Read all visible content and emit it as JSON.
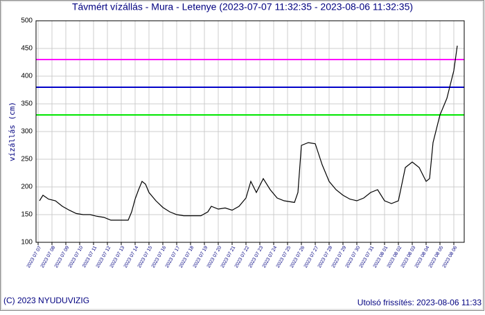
{
  "chart_data": {
    "type": "line",
    "title": "Távmért vízállás - Mura - Letenye (2023-07-07 11:32:35 - 2023-08-06 11:32:35)",
    "ylabel": "vízállás (cm)",
    "footer_left": "(C) 2023 NYUDUVIZIG",
    "footer_right": "Utolsó frissítés: 2023-08-06 11:33",
    "xlim": [
      -0.15,
      30.75
    ],
    "xticks": [
      {
        "value": 0,
        "label": "2023 07 07"
      },
      {
        "value": 1,
        "label": "2023 07 08"
      },
      {
        "value": 2,
        "label": "2023 07 09"
      },
      {
        "value": 3,
        "label": "2023 07 10"
      },
      {
        "value": 4,
        "label": "2023 07 11"
      },
      {
        "value": 5,
        "label": "2023 07 12"
      },
      {
        "value": 6,
        "label": "2023 07 13"
      },
      {
        "value": 7,
        "label": "2023 07 14"
      },
      {
        "value": 8,
        "label": "2023 07 15"
      },
      {
        "value": 9,
        "label": "2023 07 16"
      },
      {
        "value": 10,
        "label": "2023 07 17"
      },
      {
        "value": 11,
        "label": "2023 07 18"
      },
      {
        "value": 12,
        "label": "2023 07 19"
      },
      {
        "value": 13,
        "label": "2023 07 20"
      },
      {
        "value": 14,
        "label": "2023 07 21"
      },
      {
        "value": 15,
        "label": "2023 07 22"
      },
      {
        "value": 16,
        "label": "2023 07 23"
      },
      {
        "value": 17,
        "label": "2023 07 24"
      },
      {
        "value": 18,
        "label": "2023 07 25"
      },
      {
        "value": 19,
        "label": "2023 07 26"
      },
      {
        "value": 20,
        "label": "2023 07 27"
      },
      {
        "value": 21,
        "label": "2023 07 28"
      },
      {
        "value": 22,
        "label": "2023 07 29"
      },
      {
        "value": 23,
        "label": "2023 07 30"
      },
      {
        "value": 24,
        "label": "2023 07 31"
      },
      {
        "value": 25,
        "label": "2023 08 01"
      },
      {
        "value": 26,
        "label": "2023 08 02"
      },
      {
        "value": 27,
        "label": "2023 08 03"
      },
      {
        "value": 28,
        "label": "2023 08 04"
      },
      {
        "value": 29,
        "label": "2023 08 05"
      },
      {
        "value": 30,
        "label": "2023 08 06"
      }
    ],
    "ylim": [
      100,
      500
    ],
    "yticks": [
      100,
      150,
      200,
      250,
      300,
      350,
      400,
      450,
      500
    ],
    "grid": true,
    "hlines": [
      {
        "value": 430,
        "color": "#ff00ff"
      },
      {
        "value": 380,
        "color": "#0000c8"
      },
      {
        "value": 330,
        "color": "#00e600"
      }
    ],
    "series": [
      {
        "color": "#000000",
        "x": [
          0.1,
          0.35,
          0.75,
          1.25,
          1.75,
          2.25,
          2.75,
          3.25,
          3.75,
          4.25,
          4.75,
          5.25,
          6,
          6.5,
          6.75,
          7,
          7.25,
          7.5,
          7.75,
          8,
          8.5,
          9,
          9.5,
          10,
          10.5,
          11.25,
          11.75,
          12.25,
          12.5,
          13,
          13.5,
          14,
          14.5,
          15,
          15.35,
          15.75,
          16.25,
          16.75,
          17.25,
          17.75,
          18.5,
          18.75,
          19,
          19.5,
          20,
          20.5,
          21,
          21.5,
          22,
          22.5,
          23,
          23.5,
          24,
          24.5,
          25,
          25.5,
          26,
          26.5,
          27,
          27.5,
          28,
          28.25,
          28.5,
          29,
          29.5,
          30,
          30.25
        ],
        "values": [
          175,
          185,
          178,
          175,
          165,
          158,
          152,
          150,
          150,
          147,
          145,
          140,
          140,
          140,
          155,
          178,
          195,
          210,
          205,
          190,
          175,
          163,
          155,
          150,
          148,
          148,
          148,
          155,
          165,
          160,
          162,
          158,
          165,
          180,
          210,
          190,
          215,
          195,
          180,
          175,
          172,
          190,
          275,
          280,
          278,
          240,
          210,
          195,
          185,
          178,
          175,
          180,
          190,
          195,
          175,
          170,
          175,
          235,
          245,
          235,
          210,
          215,
          280,
          330,
          360,
          410,
          455
        ]
      }
    ]
  }
}
